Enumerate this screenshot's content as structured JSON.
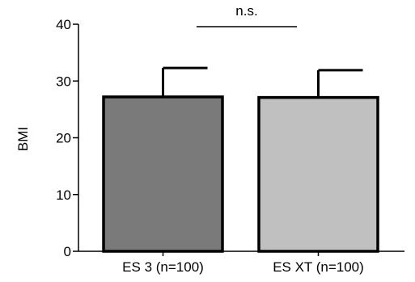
{
  "chart_data": {
    "type": "bar",
    "categories": [
      "ES 3 (n=100)",
      "ES XT (n=100)"
    ],
    "series": [
      {
        "values": [
          27.2,
          27.1
        ],
        "error_upper": [
          5.1,
          4.8
        ],
        "colors": [
          "#7a7a7a",
          "#c0c0c0"
        ]
      }
    ],
    "ylabel": "BMI",
    "xlabel": "",
    "ylim": [
      0,
      40
    ],
    "yticks": [
      0,
      10,
      20,
      30,
      40
    ],
    "grid": false,
    "annotations": [
      {
        "text": "n.s.",
        "between": [
          0,
          1
        ]
      }
    ]
  }
}
